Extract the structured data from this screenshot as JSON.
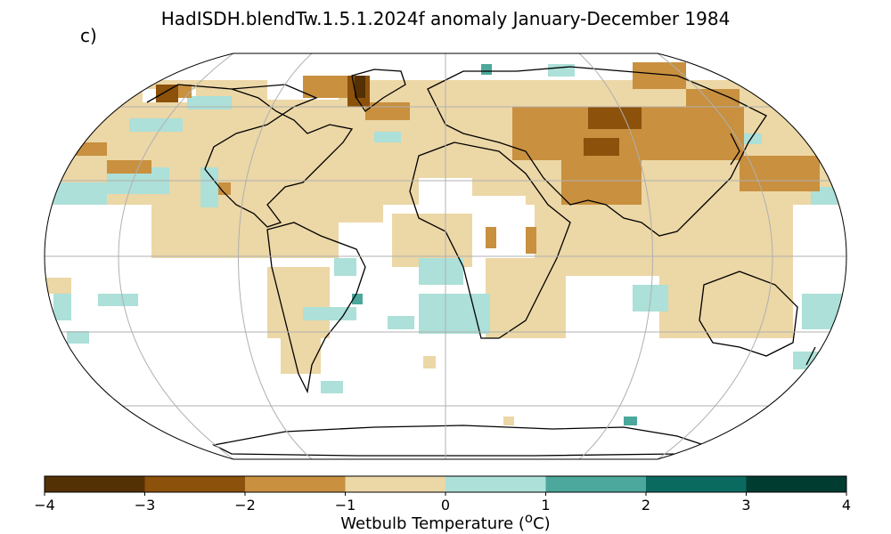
{
  "title": "HadISDH.blendTw.1.5.1.2024f anomaly January-December 1984",
  "panel_label": "c)",
  "colorbar": {
    "label_text": "Wetbulb Temperature (",
    "label_sup": "o",
    "label_end": "C)",
    "ticks": [
      "−4",
      "−3",
      "−2",
      "−1",
      "0",
      "1",
      "2",
      "3",
      "4"
    ],
    "colors": [
      "#543005",
      "#8c510a",
      "#c8903f",
      "#ecd7a6",
      "#ace0d8",
      "#4ca89c",
      "#0b6a60",
      "#003c30"
    ],
    "range": [
      -4,
      4
    ]
  },
  "legend_classes": [
    {
      "range": "-4 to -3",
      "color": "#543005"
    },
    {
      "range": "-3 to -2",
      "color": "#8c510a"
    },
    {
      "range": "-2 to -1",
      "color": "#c8903f"
    },
    {
      "range": "-1 to 0",
      "color": "#ecd7a6"
    },
    {
      "range": "0 to 1",
      "color": "#ace0d8"
    },
    {
      "range": "1 to 2",
      "color": "#4ca89c"
    },
    {
      "range": "2 to 3",
      "color": "#0b6a60"
    },
    {
      "range": "3 to 4",
      "color": "#003c30"
    }
  ],
  "map": {
    "projection": "Robinson",
    "gridlines": true,
    "coastline_color": "#000000",
    "missing_data_color": "#ffffff"
  }
}
